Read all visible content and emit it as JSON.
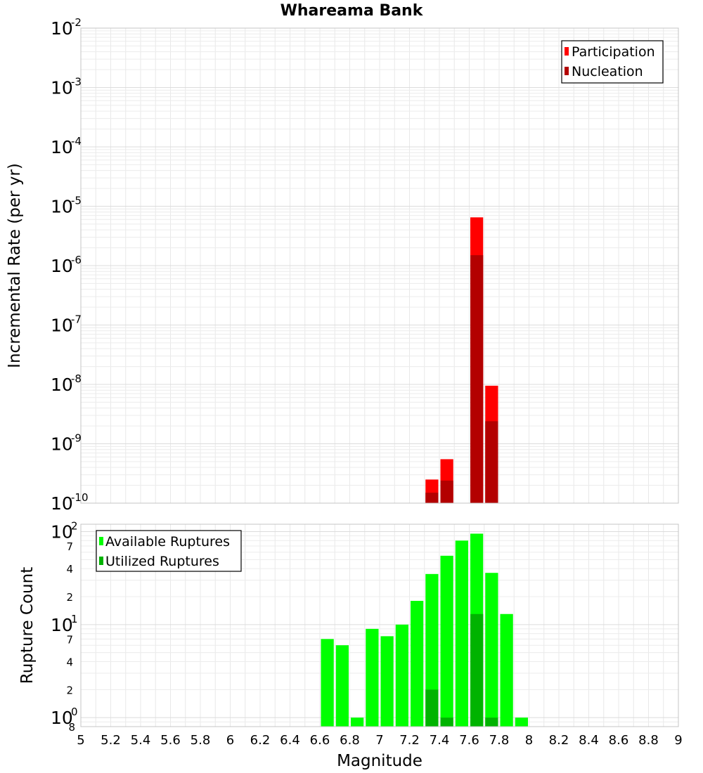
{
  "chart_data": [
    {
      "type": "bar",
      "title": "Whareama Bank",
      "ylabel": "Incremental Rate (per yr)",
      "yscale": "log",
      "ylim": [
        1e-10,
        0.01
      ],
      "xlim": [
        5,
        9
      ],
      "bar_width": 0.1,
      "grid": true,
      "legend_position": "top-right",
      "y_ticks": [
        {
          "base": "10",
          "exp": "-10",
          "value": 1e-10
        },
        {
          "base": "10",
          "exp": "-9",
          "value": 1e-09
        },
        {
          "base": "10",
          "exp": "-8",
          "value": 1e-08
        },
        {
          "base": "10",
          "exp": "-7",
          "value": 1e-07
        },
        {
          "base": "10",
          "exp": "-6",
          "value": 1e-06
        },
        {
          "base": "10",
          "exp": "-5",
          "value": 1e-05
        },
        {
          "base": "10",
          "exp": "-4",
          "value": 0.0001
        },
        {
          "base": "10",
          "exp": "-3",
          "value": 0.001
        },
        {
          "base": "10",
          "exp": "-2",
          "value": 0.01
        }
      ],
      "series": [
        {
          "name": "Participation",
          "color": "#ff0000",
          "x": [
            7.35,
            7.45,
            7.65,
            7.75
          ],
          "values": [
            2.5e-10,
            5.5e-10,
            6.5e-06,
            9.5e-09
          ]
        },
        {
          "name": "Nucleation",
          "color": "#b30000",
          "x": [
            7.35,
            7.45,
            7.65,
            7.75
          ],
          "values": [
            1.5e-10,
            2.4e-10,
            1.5e-06,
            2.4e-09
          ]
        }
      ]
    },
    {
      "type": "bar",
      "ylabel": "Rupture Count",
      "xlabel": "Magnitude",
      "yscale": "log",
      "ylim": [
        0.8,
        120
      ],
      "xlim": [
        5,
        9
      ],
      "bar_width": 0.1,
      "grid": true,
      "legend_position": "top-left",
      "x_ticks": [
        "5",
        "5.2",
        "5.4",
        "5.6",
        "5.8",
        "6",
        "6.2",
        "6.4",
        "6.6",
        "6.8",
        "7",
        "7.2",
        "7.4",
        "7.6",
        "7.8",
        "8",
        "8.2",
        "8.4",
        "8.6",
        "8.8",
        "9"
      ],
      "y_major_ticks": [
        {
          "base": "10",
          "exp": "0",
          "value": 1
        },
        {
          "base": "10",
          "exp": "1",
          "value": 10
        },
        {
          "base": "10",
          "exp": "2",
          "value": 100
        }
      ],
      "y_minor_ticks": [
        {
          "label": "8",
          "value": 0.8
        },
        {
          "label": "2",
          "value": 2
        },
        {
          "label": "4",
          "value": 4
        },
        {
          "label": "7",
          "value": 7
        },
        {
          "label": "2",
          "value": 20
        },
        {
          "label": "4",
          "value": 40
        },
        {
          "label": "7",
          "value": 70
        }
      ],
      "series": [
        {
          "name": "Available Ruptures",
          "color": "#00ff00",
          "x": [
            6.65,
            6.75,
            6.85,
            6.95,
            7.05,
            7.15,
            7.25,
            7.35,
            7.45,
            7.55,
            7.65,
            7.75,
            7.85,
            7.95
          ],
          "values": [
            7,
            6,
            1,
            9,
            7.5,
            10,
            18,
            35,
            55,
            80,
            95,
            36,
            13,
            1
          ]
        },
        {
          "name": "Utilized Ruptures",
          "color": "#00b300",
          "x": [
            7.35,
            7.45,
            7.65,
            7.75
          ],
          "values": [
            2,
            1,
            13,
            1
          ]
        }
      ]
    }
  ]
}
